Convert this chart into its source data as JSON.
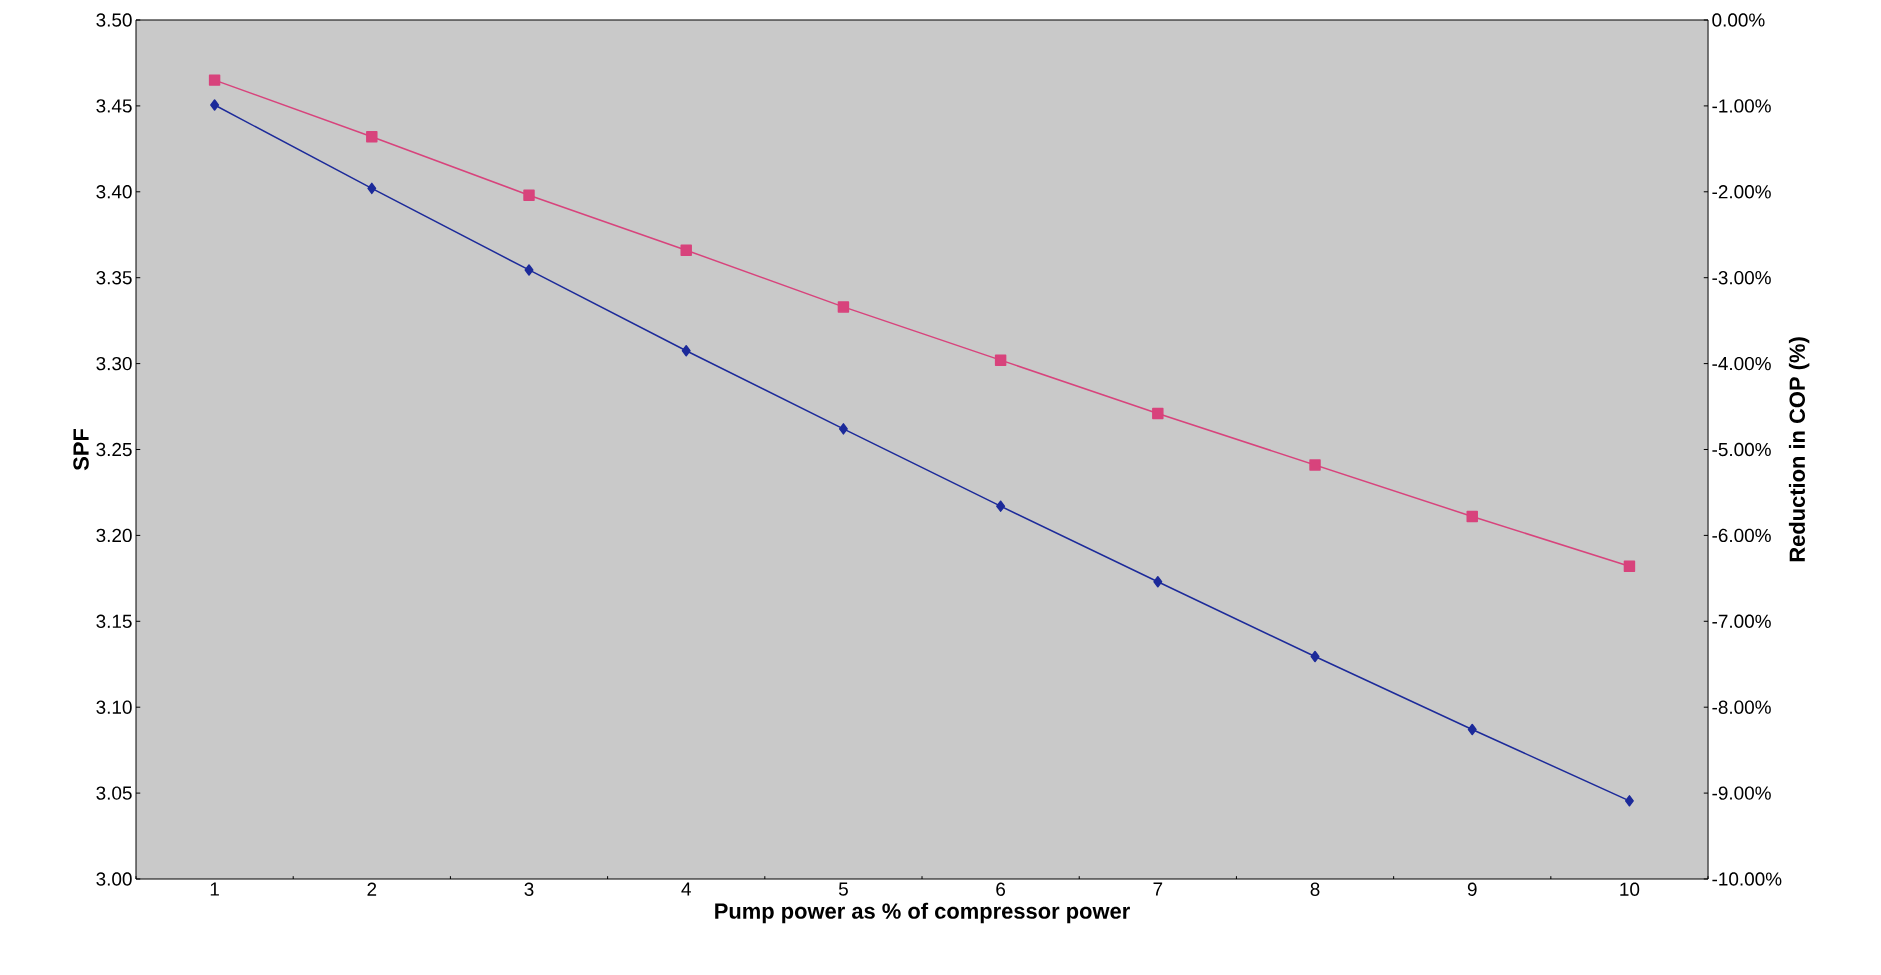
{
  "chart_data": {
    "type": "line",
    "xlabel": "Pump power as % of compressor power",
    "ylabel": "SPF",
    "y2label": "Reduction in COP (%)",
    "categories": [
      "1",
      "2",
      "3",
      "4",
      "5",
      "6",
      "7",
      "8",
      "9",
      "10"
    ],
    "series": [
      {
        "color": "#d8437c",
        "marker": "square",
        "values": [
          3.465,
          3.432,
          3.398,
          3.366,
          3.333,
          3.302,
          3.271,
          3.241,
          3.211,
          3.182
        ]
      },
      {
        "color": "#1c2a9a",
        "marker": "diamond",
        "axis": "y2",
        "values": [
          -0.99,
          -1.96,
          -2.91,
          -3.85,
          -4.76,
          -5.66,
          -6.54,
          -7.41,
          -8.26,
          -9.09
        ]
      }
    ],
    "ylim": [
      3.0,
      3.5
    ],
    "yticks": [
      {
        "value": 3.0,
        "label": "3.00"
      },
      {
        "value": 3.05,
        "label": "3.05"
      },
      {
        "value": 3.1,
        "label": "3.10"
      },
      {
        "value": 3.15,
        "label": "3.15"
      },
      {
        "value": 3.2,
        "label": "3.20"
      },
      {
        "value": 3.25,
        "label": "3.25"
      },
      {
        "value": 3.3,
        "label": "3.30"
      },
      {
        "value": 3.35,
        "label": "3.35"
      },
      {
        "value": 3.4,
        "label": "3.40"
      },
      {
        "value": 3.45,
        "label": "3.45"
      },
      {
        "value": 3.5,
        "label": "3.50"
      }
    ],
    "y2lim": [
      -10,
      0
    ],
    "y2ticks": [
      {
        "value": -10,
        "label": "-10.00%"
      },
      {
        "value": -9,
        "label": "-9.00%"
      },
      {
        "value": -8,
        "label": "-8.00%"
      },
      {
        "value": -7,
        "label": "-7.00%"
      },
      {
        "value": -6,
        "label": "-6.00%"
      },
      {
        "value": -5,
        "label": "-5.00%"
      },
      {
        "value": -4,
        "label": "-4.00%"
      },
      {
        "value": -3,
        "label": "-3.00%"
      },
      {
        "value": -2,
        "label": "-2.00%"
      },
      {
        "value": -1,
        "label": "-1.00%"
      },
      {
        "value": 0,
        "label": "0.00%"
      }
    ],
    "grid": false
  }
}
